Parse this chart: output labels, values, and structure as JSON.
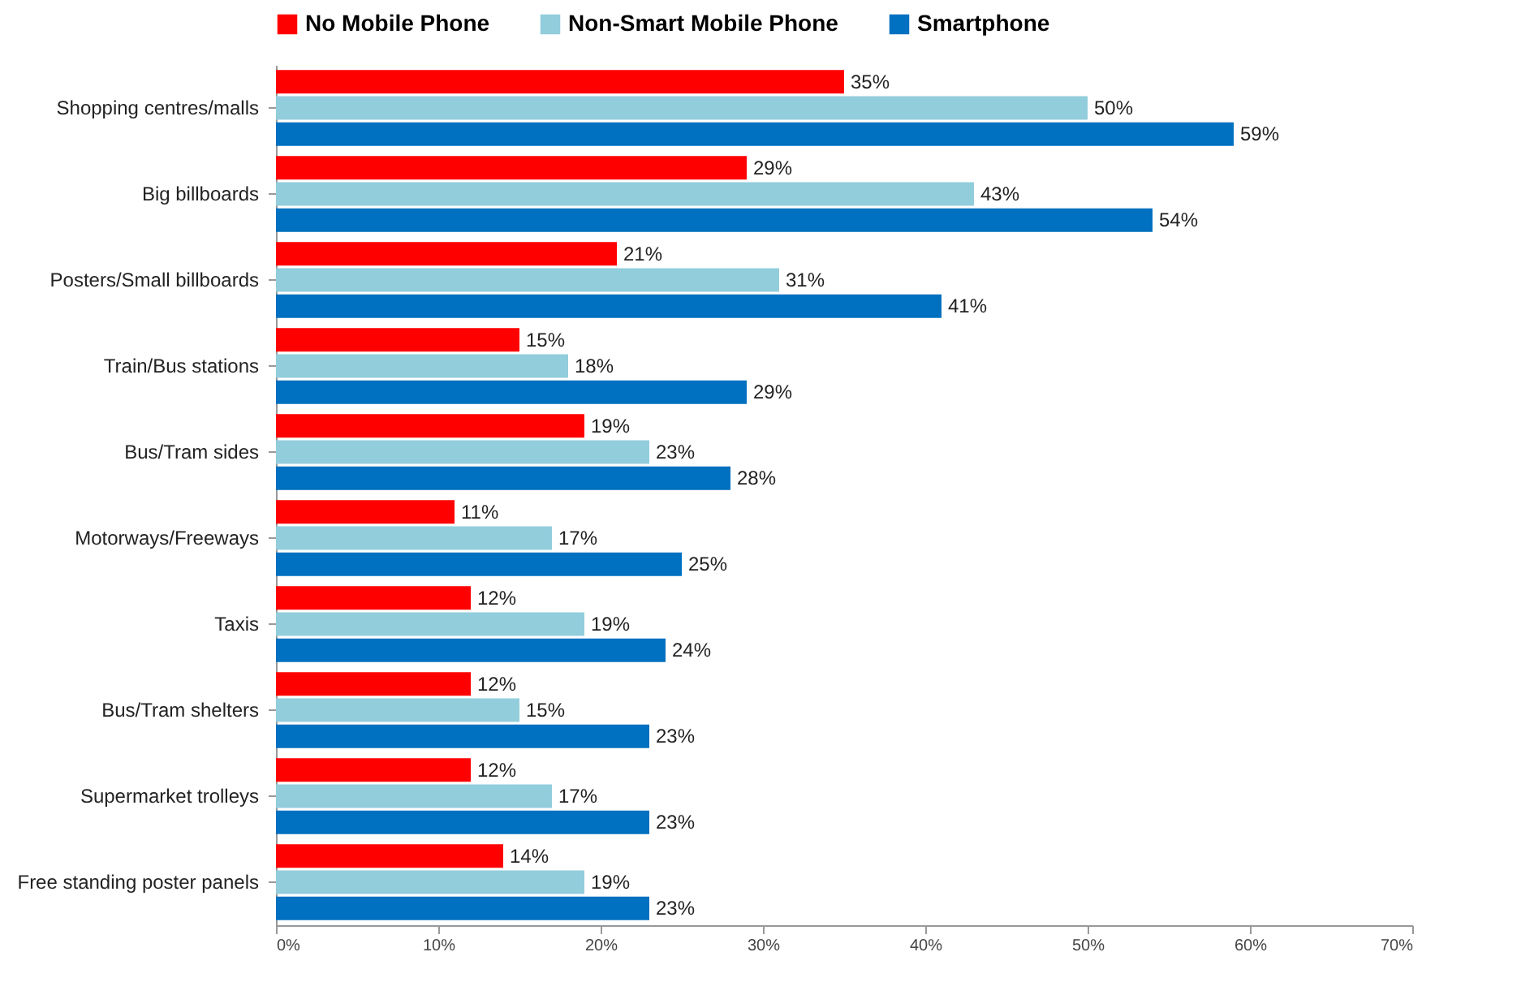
{
  "chart_data": {
    "type": "bar",
    "orientation": "horizontal",
    "categories": [
      "Shopping centres/malls",
      "Big billboards",
      "Posters/Small billboards",
      "Train/Bus stations",
      "Bus/Tram sides",
      "Motorways/Freeways",
      "Taxis",
      "Bus/Tram shelters",
      "Supermarket trolleys",
      "Free standing poster panels"
    ],
    "series": [
      {
        "name": "No Mobile Phone",
        "color": "#ff0000",
        "values": [
          35,
          29,
          21,
          15,
          19,
          11,
          12,
          12,
          12,
          14
        ],
        "value_labels": [
          "35%",
          "29%",
          "21%",
          "15%",
          "19%",
          "11%",
          "12%",
          "12%",
          "12%",
          "14%"
        ]
      },
      {
        "name": "Non-Smart Mobile Phone",
        "color": "#92cddc",
        "values": [
          50,
          43,
          31,
          18,
          23,
          17,
          19,
          15,
          17,
          19
        ],
        "value_labels": [
          "50%",
          "43%",
          "31%",
          "18%",
          "23%",
          "17%",
          "19%",
          "15%",
          "17%",
          "19%"
        ]
      },
      {
        "name": "Smartphone",
        "color": "#0070c0",
        "values": [
          59,
          54,
          41,
          29,
          28,
          25,
          24,
          23,
          23,
          23
        ],
        "value_labels": [
          "59%",
          "54%",
          "41%",
          "29%",
          "28%",
          "25%",
          "24%",
          "23%",
          "23%",
          "23%"
        ]
      }
    ],
    "xlim": [
      0,
      70
    ],
    "xticks": [
      {
        "value": 0,
        "label": "0%"
      },
      {
        "value": 10,
        "label": "10%"
      },
      {
        "value": 20,
        "label": "20%"
      },
      {
        "value": 30,
        "label": "30%"
      },
      {
        "value": 40,
        "label": "40%"
      },
      {
        "value": 50,
        "label": "50%"
      },
      {
        "value": 60,
        "label": "60%"
      },
      {
        "value": 70,
        "label": "70%"
      }
    ],
    "grid": false,
    "legend": "top"
  }
}
